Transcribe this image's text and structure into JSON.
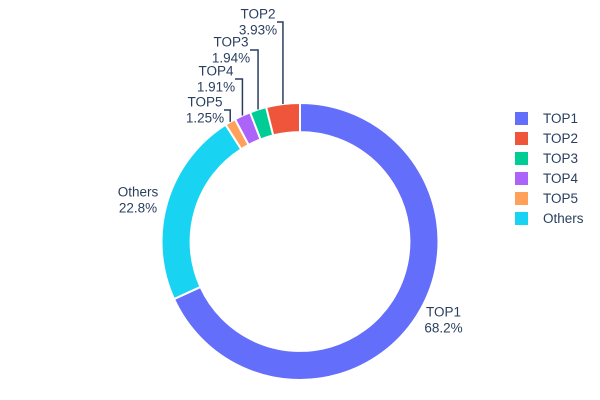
{
  "chart_data": {
    "type": "pie",
    "title": "",
    "hole_ratio": 0.79,
    "legend_position": "right",
    "background_color": "#ffffff",
    "text_color": "#2a3f5f",
    "slice_border_color": "#ffffff",
    "slices": [
      {
        "label": "TOP1",
        "percent": 68.2,
        "percent_text": "68.2%",
        "color": "#636EFA"
      },
      {
        "label": "TOP2",
        "percent": 3.93,
        "percent_text": "3.93%",
        "color": "#EF553B"
      },
      {
        "label": "TOP3",
        "percent": 1.94,
        "percent_text": "1.94%",
        "color": "#00CC96"
      },
      {
        "label": "TOP4",
        "percent": 1.91,
        "percent_text": "1.91%",
        "color": "#AB63FA"
      },
      {
        "label": "TOP5",
        "percent": 1.25,
        "percent_text": "1.25%",
        "color": "#FFA15A"
      },
      {
        "label": "Others",
        "percent": 22.8,
        "percent_text": "22.8%",
        "color": "#19D3F3"
      }
    ],
    "draw_order_clockwise_from_top": [
      "TOP1",
      "Others",
      "TOP5",
      "TOP4",
      "TOP3",
      "TOP2"
    ],
    "legend_order": [
      "TOP1",
      "TOP2",
      "TOP3",
      "TOP4",
      "TOP5",
      "Others"
    ]
  }
}
